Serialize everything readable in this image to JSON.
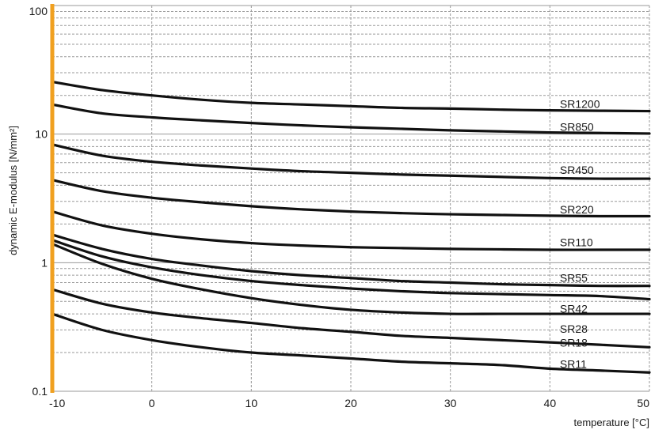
{
  "chart_data": {
    "type": "line",
    "xlabel": "temperature [°C]",
    "ylabel": "dynamic E-modulus [N/mm²]",
    "xlim": [
      -10,
      50
    ],
    "ylim": [
      0.1,
      100
    ],
    "yscale": "log",
    "grid": true,
    "axis_color": "#f0a020",
    "line_color": "#111111",
    "x_ticks": [
      -10,
      0,
      10,
      20,
      30,
      40,
      50
    ],
    "x_tick_labels": [
      "-10",
      "0",
      "10",
      "20",
      "30",
      "40",
      "50"
    ],
    "y_ticks": [
      0.1,
      1,
      10,
      100
    ],
    "y_tick_labels": [
      "0.1",
      "1",
      "10",
      "100"
    ],
    "x": [
      -10,
      -5,
      0,
      5,
      10,
      15,
      20,
      25,
      30,
      35,
      40,
      45,
      50
    ],
    "series": [
      {
        "name": "SR1200",
        "values": [
          25.5,
          22,
          20,
          18.5,
          17.5,
          17,
          16.5,
          16,
          15.8,
          15.5,
          15.3,
          15.2,
          15.1
        ],
        "label_x": 41.0,
        "label_y": 17.2
      },
      {
        "name": "SR850",
        "values": [
          17,
          14.5,
          13.5,
          12.8,
          12.2,
          11.7,
          11.3,
          11,
          10.7,
          10.5,
          10.3,
          10.2,
          10.1
        ],
        "label_x": 41.0,
        "label_y": 11.4
      },
      {
        "name": "SR450",
        "values": [
          8.3,
          6.8,
          6.1,
          5.7,
          5.4,
          5.15,
          5.0,
          4.85,
          4.75,
          4.65,
          4.55,
          4.5,
          4.5
        ],
        "label_x": 41.0,
        "label_y": 5.25
      },
      {
        "name": "SR220",
        "values": [
          4.4,
          3.6,
          3.2,
          2.95,
          2.75,
          2.6,
          2.5,
          2.43,
          2.38,
          2.35,
          2.32,
          2.3,
          2.3
        ],
        "label_x": 41.0,
        "label_y": 2.6
      },
      {
        "name": "SR110",
        "values": [
          2.5,
          1.95,
          1.68,
          1.52,
          1.42,
          1.36,
          1.32,
          1.3,
          1.28,
          1.27,
          1.26,
          1.26,
          1.26
        ],
        "label_x": 41.0,
        "label_y": 1.44
      },
      {
        "name": "SR55",
        "values": [
          1.65,
          1.28,
          1.07,
          0.95,
          0.86,
          0.8,
          0.76,
          0.72,
          0.7,
          0.68,
          0.67,
          0.66,
          0.66
        ],
        "label_x": 41.0,
        "label_y": 0.76
      },
      {
        "name": "SR42",
        "values": [
          1.5,
          1.12,
          0.92,
          0.8,
          0.72,
          0.67,
          0.63,
          0.6,
          0.58,
          0.57,
          0.56,
          0.55,
          0.52
        ],
        "label_x": 41.0,
        "label_y": 0.44
      },
      {
        "name": "SR28",
        "values": [
          1.4,
          0.98,
          0.75,
          0.62,
          0.53,
          0.47,
          0.43,
          0.41,
          0.4,
          0.4,
          0.4,
          0.4,
          0.4
        ],
        "label_x": 41.0,
        "label_y": 0.305
      },
      {
        "name": "SR18",
        "values": [
          0.62,
          0.48,
          0.41,
          0.37,
          0.34,
          0.31,
          0.29,
          0.27,
          0.26,
          0.25,
          0.24,
          0.23,
          0.22
        ],
        "label_x": 41.0,
        "label_y": 0.238
      },
      {
        "name": "SR11",
        "values": [
          0.4,
          0.3,
          0.25,
          0.22,
          0.2,
          0.19,
          0.18,
          0.17,
          0.165,
          0.16,
          0.15,
          0.145,
          0.14
        ],
        "label_x": 41.0,
        "label_y": 0.163
      }
    ]
  }
}
